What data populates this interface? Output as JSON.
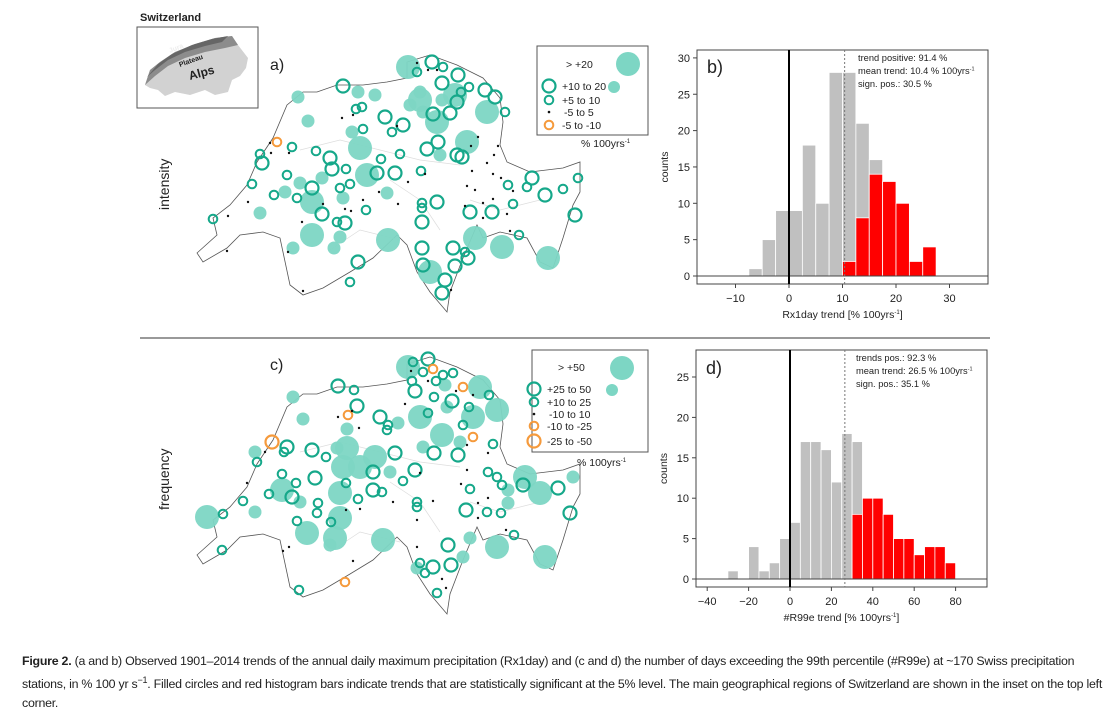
{
  "inset": {
    "title": "Switzerland",
    "regions": [
      "Jura",
      "Plateau",
      "Alps"
    ]
  },
  "panels": {
    "a": {
      "label": "a)",
      "row_label": "intensity"
    },
    "b": {
      "label": "b)"
    },
    "c": {
      "label": "c)",
      "row_label": "frequency"
    },
    "d": {
      "label": "d)"
    }
  },
  "legend_a": {
    "entries": [
      "> +20",
      "+10 to 20",
      "+5 to 10",
      "-5 to 5",
      "-5 to -10"
    ],
    "unit": "% 100yrs",
    "unit_sup": "-1"
  },
  "legend_c": {
    "entries": [
      "> +50",
      "+25 to 50",
      "+10 to 25",
      "-10 to 10",
      "-10 to -25",
      "-25 to -50"
    ],
    "unit": "% 100yrs",
    "unit_sup": "-1"
  },
  "colors": {
    "sig_fill": "#7dd6c4",
    "ring": "#16a88a",
    "negative": "#f59a3c",
    "bar_gray": "#c0c0c0",
    "bar_red": "#ff0000"
  },
  "chart_data": [
    {
      "type": "bar",
      "id": "b",
      "title": "",
      "xlabel": "Rx1day trend [% 100yrs",
      "xlabel_sup": "-1",
      "xlabel_end": "]",
      "ylabel": "counts",
      "bin_start": -7.5,
      "bin_width": 2.5,
      "counts_all": [
        1,
        5,
        9,
        9,
        18,
        10,
        28,
        28,
        21,
        16,
        13,
        10,
        2,
        4
      ],
      "counts_significant": [
        0,
        0,
        0,
        0,
        0,
        0,
        0,
        2,
        8,
        14,
        13,
        10,
        2,
        4
      ],
      "mean": 10.4,
      "xlim": [
        -17,
        37
      ],
      "ylim": [
        0,
        31
      ],
      "xticks": [
        -10,
        0,
        10,
        20,
        30
      ],
      "yticks": [
        0,
        5,
        10,
        15,
        20,
        25,
        30
      ],
      "annotations": [
        "trend positive: 91.4 %",
        "mean trend: 10.4 % 100yrs",
        "sign. pos.: 30.5 %"
      ],
      "annotation_sup": "-1"
    },
    {
      "type": "bar",
      "id": "d",
      "title": "",
      "xlabel": "#R99e trend [% 100yrs",
      "xlabel_sup": "-1",
      "xlabel_end": "]",
      "ylabel": "counts",
      "bin_start": -30,
      "bin_width": 5,
      "counts_all": [
        1,
        0,
        4,
        1,
        2,
        5,
        7,
        17,
        17,
        16,
        12,
        18,
        17,
        10,
        10,
        8,
        5,
        5,
        3,
        4,
        4,
        2
      ],
      "counts_significant": [
        0,
        0,
        0,
        0,
        0,
        0,
        0,
        0,
        0,
        0,
        0,
        0,
        8,
        10,
        10,
        8,
        5,
        5,
        3,
        4,
        4,
        2
      ],
      "mean": 26.5,
      "xlim": [
        -46,
        95
      ],
      "ylim": [
        0,
        28
      ],
      "xticks": [
        -40,
        -20,
        0,
        20,
        40,
        60,
        80
      ],
      "yticks": [
        0,
        5,
        10,
        15,
        20,
        25
      ],
      "annotations": [
        "trends pos.: 92.3 %",
        "mean trend: 26.5 % 100yrs",
        "sign. pos.: 35.1 %"
      ],
      "annotation_sup": "-1"
    }
  ],
  "caption": {
    "label": "Figure 2.",
    "text1": " (a and b) Observed 1901–2014 trends of the annual daily maximum precipitation (Rx1day) and (c and d) the number of days exceeding the 99th percentile (#R99e) at ~170 Swiss precipitation stations, in % 100 yr s",
    "sup": "−1",
    "text2": ". Filled circles and red histogram bars indicate trends that are statistically significant at the 5% level. The main geographical regions of Switzerland are shown in the inset on the top left corner."
  }
}
